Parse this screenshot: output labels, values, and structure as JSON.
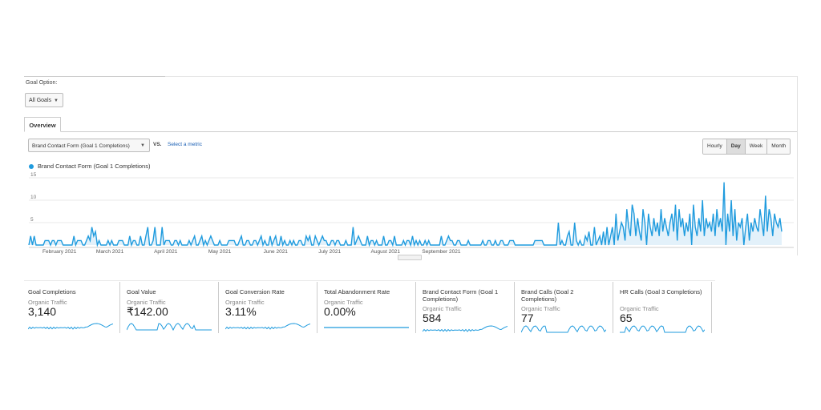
{
  "goal_option": {
    "label": "Goal Option:",
    "selected": "All Goals"
  },
  "tabs": [
    {
      "label": "Overview"
    }
  ],
  "metric_selector": {
    "selected": "Brand Contact Form (Goal 1 Completions)",
    "vs": "VS.",
    "select_metric": "Select a metric"
  },
  "period_buttons": [
    {
      "label": "Hourly"
    },
    {
      "label": "Day"
    },
    {
      "label": "Week"
    },
    {
      "label": "Month"
    }
  ],
  "active_period": "Day",
  "chart_data": {
    "type": "area",
    "title": "",
    "legend": [
      "Brand Contact Form (Goal 1 Completions)"
    ],
    "color": "#1f9bde",
    "ylim": [
      0,
      15
    ],
    "yticks": [
      "15",
      "10",
      "5"
    ],
    "ytick_values": [
      15,
      10,
      5
    ],
    "xlabel": "",
    "ylabel": "",
    "month_labels": [
      "February 2021",
      "March 2021",
      "April 2021",
      "May 2021",
      "June 2021",
      "July 2021",
      "August 2021",
      "September 2021"
    ],
    "month_start_index": [
      17,
      45,
      76,
      106,
      137,
      167,
      198,
      229
    ],
    "values": [
      0,
      2,
      0,
      2,
      0,
      0,
      0,
      0,
      0,
      1,
      1,
      1,
      0,
      1,
      1,
      0,
      1,
      1,
      1,
      0,
      0,
      0,
      0,
      0,
      0,
      2,
      0,
      1,
      1,
      1,
      0,
      0,
      1,
      2,
      1,
      4,
      2,
      3,
      0,
      1,
      0,
      0,
      0,
      0,
      1,
      0,
      1,
      0,
      0,
      0,
      1,
      1,
      1,
      0,
      0,
      0,
      2,
      0,
      1,
      1,
      0,
      0,
      2,
      0,
      0,
      2,
      4,
      0,
      0,
      1,
      4,
      0,
      0,
      0,
      4,
      0,
      1,
      1,
      1,
      0,
      0,
      1,
      1,
      0,
      1,
      0,
      0,
      0,
      0,
      1,
      0,
      1,
      2,
      0,
      0,
      1,
      2,
      0,
      1,
      0,
      1,
      2,
      1,
      0,
      0,
      0,
      1,
      0,
      0,
      0,
      0,
      1,
      1,
      1,
      1,
      0,
      0,
      1,
      2,
      0,
      0,
      1,
      1,
      0,
      0,
      1,
      1,
      0,
      1,
      2,
      0,
      1,
      0,
      0,
      2,
      0,
      1,
      2,
      0,
      0,
      2,
      0,
      1,
      0,
      0,
      1,
      0,
      1,
      0,
      0,
      1,
      1,
      0,
      0,
      2,
      1,
      2,
      0,
      0,
      2,
      1,
      0,
      1,
      2,
      1,
      1,
      0,
      0,
      1,
      1,
      0,
      1,
      1,
      0,
      0,
      0,
      1,
      0,
      0,
      0,
      4,
      0,
      1,
      2,
      1,
      0,
      0,
      0,
      2,
      0,
      1,
      1,
      0,
      1,
      0,
      0,
      0,
      2,
      0,
      0,
      1,
      1,
      0,
      2,
      0,
      0,
      0,
      0,
      1,
      0,
      1,
      1,
      0,
      2,
      0,
      1,
      0,
      1,
      0,
      0,
      1,
      0,
      1,
      0,
      0,
      0,
      0,
      0,
      0,
      2,
      0,
      0,
      1,
      2,
      1,
      1,
      0,
      0,
      1,
      1,
      0,
      0,
      0,
      0,
      1,
      0,
      0,
      0,
      0,
      0,
      0,
      0,
      1,
      0,
      0,
      1,
      1,
      0,
      0,
      1,
      0,
      0,
      1,
      1,
      0,
      0,
      0,
      1,
      1,
      1,
      0,
      0,
      0,
      0,
      0,
      0,
      0,
      0,
      0,
      0,
      0,
      1,
      1,
      1,
      1,
      1,
      0,
      0,
      0,
      0,
      0,
      0,
      0,
      0,
      5,
      0,
      1,
      0,
      0,
      2,
      3,
      0,
      0,
      5,
      1,
      0,
      1,
      0,
      0,
      2,
      1,
      3,
      0,
      0,
      4,
      0,
      1,
      2,
      0,
      3,
      0,
      4,
      0,
      2,
      4,
      0,
      7,
      1,
      3,
      5,
      4,
      1,
      8,
      4,
      2,
      9,
      7,
      2,
      6,
      3,
      1,
      8,
      5,
      0,
      7,
      4,
      2,
      6,
      3,
      5,
      2,
      8,
      3,
      6,
      4,
      2,
      5,
      7,
      3,
      9,
      1,
      8,
      4,
      6,
      2,
      5,
      3,
      7,
      0,
      9,
      4,
      2,
      6,
      3,
      10,
      2,
      6,
      4,
      5,
      3,
      7,
      2,
      8,
      4,
      6,
      3,
      14,
      0,
      7,
      3,
      10,
      2,
      8,
      1,
      5,
      4,
      6,
      0,
      4,
      7,
      1,
      5,
      3,
      6,
      4,
      3,
      8,
      5,
      2,
      11,
      3,
      8,
      6,
      2,
      7,
      5,
      4,
      6,
      3
    ]
  },
  "cards": [
    {
      "title": "Goal Completions",
      "subtitle": "Organic Traffic",
      "value": "3,140",
      "spark": "wave"
    },
    {
      "title": "Goal Value",
      "subtitle": "Organic Traffic",
      "value": "₹142.00",
      "spark": "bars"
    },
    {
      "title": "Goal Conversion Rate",
      "subtitle": "Organic Traffic",
      "value": "3.11%",
      "spark": "wave"
    },
    {
      "title": "Total Abandonment Rate",
      "subtitle": "Organic Traffic",
      "value": "0.00%",
      "spark": "flat"
    },
    {
      "title": "Brand Contact Form (Goal 1 Completions)",
      "subtitle": "Organic Traffic",
      "value": "584",
      "spark": "wave"
    },
    {
      "title": "Brand Calls (Goal 2 Completions)",
      "subtitle": "Organic Traffic",
      "value": "77",
      "spark": "bars"
    },
    {
      "title": "HR Calls (Goal 3 Completions)",
      "subtitle": "Organic Traffic",
      "value": "65",
      "spark": "bars"
    }
  ]
}
